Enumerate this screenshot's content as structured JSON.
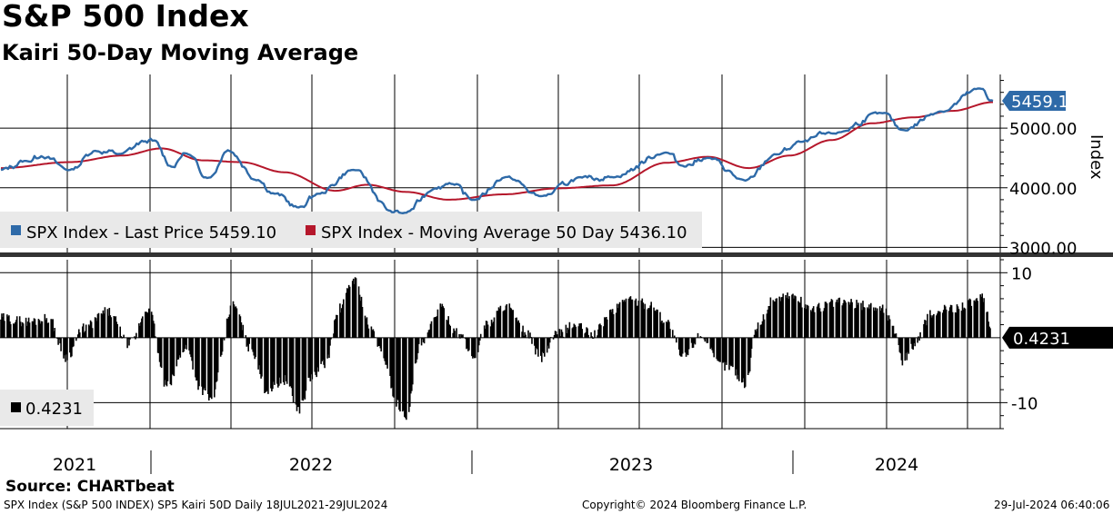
{
  "title": "S&P 500 Index",
  "subtitle": "Kairi 50-Day Moving Average",
  "source": "Source: CHARTbeat",
  "footer": {
    "left": "SPX Index (S&P 500 INDEX) SP5 Kairi 50D  Daily 18JUL2021-29JUL2024",
    "center": "Copyright© 2024 Bloomberg Finance L.P.",
    "right": "29-Jul-2024 06:40:06"
  },
  "chart_data": [
    {
      "type": "line",
      "panel": "upper",
      "ylabel": "Index",
      "ylim": [
        2900,
        5900
      ],
      "yticks": [
        3000,
        4000,
        5000
      ],
      "ytick_labels": [
        "3000.00",
        "4000.00",
        "5000.00"
      ],
      "x_labels": [
        "2021",
        "2022",
        "2023",
        "2024"
      ],
      "x_range": [
        "2021-07-18",
        "2024-07-29"
      ],
      "legend": [
        {
          "label": "SPX Index - Last Price 5459.10",
          "color": "#2e6aa8"
        },
        {
          "label": "SPX Index - Moving Average 50 Day 5436.10",
          "color": "#b5172b"
        }
      ],
      "last_value_label": "5459.10",
      "series": [
        {
          "name": "SPX Index - Last Price",
          "color": "#2e6aa8",
          "x": [
            "2021-07-19",
            "2021-08-16",
            "2021-09-02",
            "2021-10-04",
            "2021-11-01",
            "2021-11-30",
            "2021-12-27",
            "2022-01-04",
            "2022-01-27",
            "2022-02-09",
            "2022-03-08",
            "2022-03-29",
            "2022-05-02",
            "2022-05-20",
            "2022-06-16",
            "2022-07-08",
            "2022-08-16",
            "2022-09-30",
            "2022-10-12",
            "2022-11-15",
            "2022-12-01",
            "2022-12-28",
            "2023-02-02",
            "2023-03-13",
            "2023-04-28",
            "2023-05-31",
            "2023-07-31",
            "2023-08-18",
            "2023-09-14",
            "2023-10-27",
            "2023-11-30",
            "2023-12-29",
            "2024-02-01",
            "2024-03-28",
            "2024-04-19",
            "2024-05-31",
            "2024-07-16",
            "2024-07-29"
          ],
          "y": [
            4300,
            4450,
            4530,
            4300,
            4620,
            4570,
            4780,
            4790,
            4350,
            4580,
            4170,
            4630,
            4130,
            3900,
            3670,
            3900,
            4300,
            3590,
            3580,
            3990,
            4080,
            3800,
            4180,
            3860,
            4170,
            4180,
            4590,
            4370,
            4500,
            4120,
            4560,
            4770,
            4910,
            5250,
            4970,
            5280,
            5660,
            5459
          ]
        },
        {
          "name": "SPX Index - Moving Average 50 Day",
          "color": "#b5172b",
          "x": [
            "2021-07-19",
            "2021-10-04",
            "2021-12-01",
            "2022-01-14",
            "2022-03-01",
            "2022-04-13",
            "2022-05-31",
            "2022-07-27",
            "2022-08-31",
            "2022-10-14",
            "2022-11-30",
            "2023-01-31",
            "2023-03-31",
            "2023-05-31",
            "2023-07-31",
            "2023-09-15",
            "2023-10-31",
            "2023-12-15",
            "2024-01-31",
            "2024-03-15",
            "2024-05-01",
            "2024-06-14",
            "2024-07-29"
          ],
          "y": [
            4330,
            4430,
            4540,
            4660,
            4460,
            4430,
            4260,
            3950,
            4050,
            3930,
            3800,
            3890,
            3990,
            4040,
            4420,
            4520,
            4330,
            4540,
            4800,
            5080,
            5180,
            5290,
            5436
          ]
        }
      ]
    },
    {
      "type": "bar",
      "panel": "lower",
      "ylim": [
        -14,
        12
      ],
      "yticks": [
        10,
        -10
      ],
      "ytick_labels": [
        "10",
        "-10"
      ],
      "legend": [
        {
          "label": "0.4231",
          "color": "#000000"
        }
      ],
      "last_value_label": "0.4231",
      "series": [
        {
          "name": "Kairi 50D",
          "color": "#000000",
          "x": [
            "2021-07-19",
            "2021-08-18",
            "2021-09-10",
            "2021-09-30",
            "2021-10-20",
            "2021-11-15",
            "2021-12-10",
            "2021-12-30",
            "2022-01-20",
            "2022-02-10",
            "2022-02-28",
            "2022-03-10",
            "2022-04-04",
            "2022-04-25",
            "2022-05-11",
            "2022-06-01",
            "2022-06-16",
            "2022-07-01",
            "2022-07-15",
            "2022-08-01",
            "2022-08-16",
            "2022-09-06",
            "2022-09-20",
            "2022-10-03",
            "2022-10-13",
            "2022-10-31",
            "2022-11-21",
            "2022-12-12",
            "2022-12-28",
            "2023-01-11",
            "2023-02-02",
            "2023-02-23",
            "2023-03-13",
            "2023-03-31",
            "2023-04-20",
            "2023-05-10",
            "2023-06-01",
            "2023-06-15",
            "2023-07-14",
            "2023-07-31",
            "2023-08-18",
            "2023-09-08",
            "2023-09-27",
            "2023-10-10",
            "2023-10-27",
            "2023-11-10",
            "2023-11-28",
            "2023-12-15",
            "2024-01-10",
            "2024-02-09",
            "2024-03-08",
            "2024-03-28",
            "2024-04-12",
            "2024-04-19",
            "2024-05-03",
            "2024-05-21",
            "2024-06-12",
            "2024-07-08",
            "2024-07-17",
            "2024-07-29"
          ],
          "y": [
            3.0,
            2.5,
            3.0,
            -3.0,
            1.5,
            4.0,
            -1.0,
            4.5,
            -7.5,
            -1.5,
            -8.0,
            -9.5,
            5.0,
            -2.0,
            -8.0,
            -6.5,
            -11.0,
            -6.0,
            -4.0,
            4.5,
            9.0,
            1.0,
            -3.5,
            -10.0,
            -12.0,
            -1.0,
            4.5,
            0.5,
            -3.0,
            2.0,
            5.0,
            1.0,
            -3.0,
            0.5,
            2.0,
            0.5,
            4.0,
            6.0,
            5.0,
            2.5,
            -3.0,
            0.5,
            -4.0,
            -4.5,
            -7.0,
            2.0,
            6.0,
            6.5,
            4.5,
            5.5,
            5.0,
            4.5,
            1.0,
            -3.5,
            -1.0,
            3.5,
            4.5,
            5.5,
            6.0,
            0.4231
          ]
        }
      ]
    }
  ]
}
